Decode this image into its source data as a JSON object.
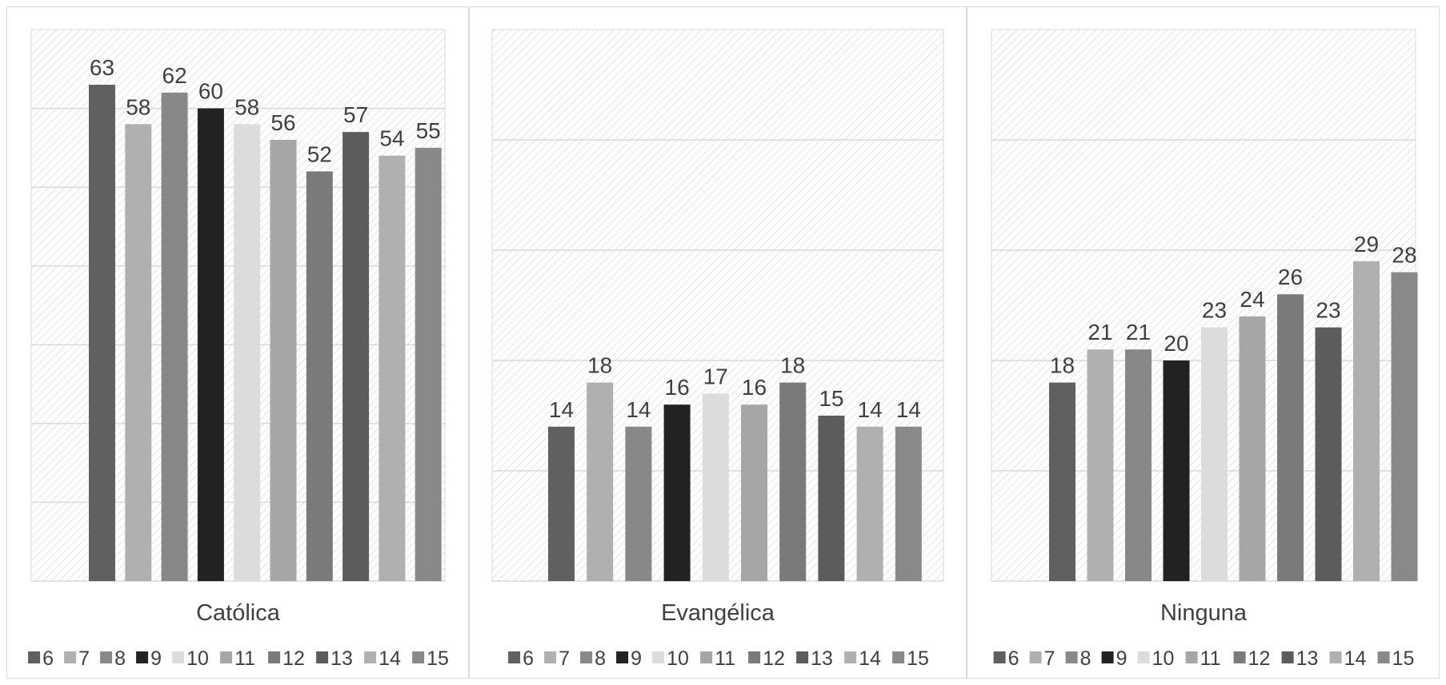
{
  "chart_data": [
    {
      "type": "bar",
      "category": "Católica",
      "ylim": [
        0,
        70
      ],
      "grid": true,
      "series": [
        {
          "name": "6",
          "value": 63
        },
        {
          "name": "7",
          "value": 58
        },
        {
          "name": "8",
          "value": 62
        },
        {
          "name": "9",
          "value": 60
        },
        {
          "name": "10",
          "value": 58
        },
        {
          "name": "11",
          "value": 56
        },
        {
          "name": "12",
          "value": 52
        },
        {
          "name": "13",
          "value": 57
        },
        {
          "name": "14",
          "value": 54
        },
        {
          "name": "15",
          "value": 55
        }
      ],
      "legend_position": "bottom"
    },
    {
      "type": "bar",
      "category": "Evangélica",
      "ylim": [
        0,
        50
      ],
      "grid": true,
      "series": [
        {
          "name": "6",
          "value": 14
        },
        {
          "name": "7",
          "value": 18
        },
        {
          "name": "8",
          "value": 14
        },
        {
          "name": "9",
          "value": 16
        },
        {
          "name": "10",
          "value": 17
        },
        {
          "name": "11",
          "value": 16
        },
        {
          "name": "12",
          "value": 18
        },
        {
          "name": "13",
          "value": 15
        },
        {
          "name": "14",
          "value": 14
        },
        {
          "name": "15",
          "value": 14
        }
      ],
      "legend_position": "bottom"
    },
    {
      "type": "bar",
      "category": "Ninguna",
      "ylim": [
        0,
        50
      ],
      "grid": true,
      "series": [
        {
          "name": "6",
          "value": 18
        },
        {
          "name": "7",
          "value": 21
        },
        {
          "name": "8",
          "value": 21
        },
        {
          "name": "9",
          "value": 20
        },
        {
          "name": "10",
          "value": 23
        },
        {
          "name": "11",
          "value": 24
        },
        {
          "name": "12",
          "value": 26
        },
        {
          "name": "13",
          "value": 23
        },
        {
          "name": "14",
          "value": 29
        },
        {
          "name": "15",
          "value": 28
        }
      ],
      "legend_position": "bottom"
    }
  ],
  "series_colors": [
    "#606060",
    "#b0b0b0",
    "#888888",
    "#222222",
    "#dcdcdc",
    "#a6a6a6",
    "#7a7a7a",
    "#5c5c5c",
    "#b0b0b0",
    "#898989"
  ]
}
